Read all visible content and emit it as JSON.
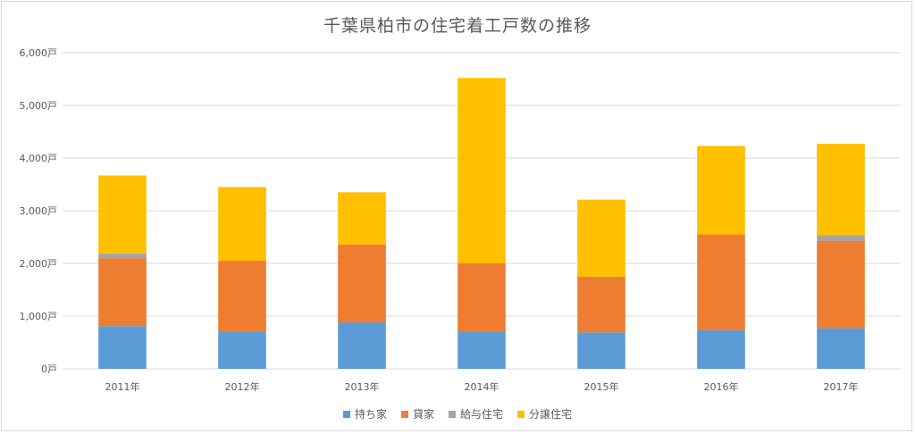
{
  "chart_data": {
    "type": "bar",
    "stacked": true,
    "title": "千葉県柏市の住宅着工戸数の推移",
    "categories": [
      "2011年",
      "2012年",
      "2013年",
      "2014年",
      "2015年",
      "2016年",
      "2017年"
    ],
    "ylim": [
      0,
      6000
    ],
    "yticks": [
      "0戸",
      "1,000戸",
      "2,000戸",
      "3,000戸",
      "4,000戸",
      "5,000戸",
      "6,000戸"
    ],
    "grid": true,
    "legend_position": "bottom",
    "series": [
      {
        "name": "持ち家",
        "color": "#5b9bd5",
        "values": [
          810,
          710,
          880,
          710,
          690,
          730,
          770
        ]
      },
      {
        "name": "貸家",
        "color": "#ed7d31",
        "values": [
          1290,
          1340,
          1480,
          1290,
          1060,
          1820,
          1660
        ]
      },
      {
        "name": "給与住宅",
        "color": "#a5a5a5",
        "values": [
          90,
          0,
          0,
          0,
          0,
          0,
          110
        ]
      },
      {
        "name": "分譲住宅",
        "color": "#ffc000",
        "values": [
          1480,
          1400,
          990,
          3520,
          1460,
          1680,
          1730
        ]
      }
    ]
  }
}
